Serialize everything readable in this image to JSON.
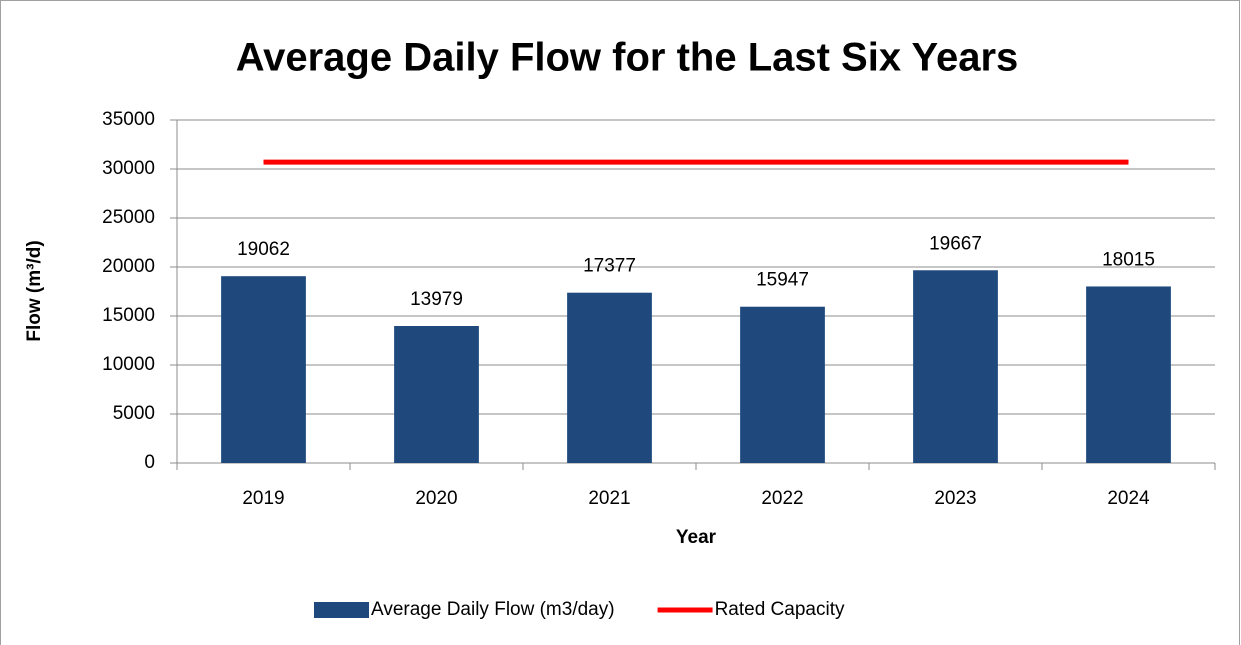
{
  "chart_data": {
    "type": "bar",
    "title": "Average Daily Flow for the Last Six Years",
    "x_label": "Year",
    "y_label": "Flow (m³/d)",
    "categories": [
      "2019",
      "2020",
      "2021",
      "2022",
      "2023",
      "2024"
    ],
    "series": [
      {
        "name": "Average Daily Flow (m3/day)",
        "type": "bar",
        "color": "#1f497d",
        "values": [
          19062,
          13979,
          17377,
          15947,
          19667,
          18015
        ]
      },
      {
        "name": "Rated Capacity",
        "type": "line",
        "color": "#ff0000",
        "values": [
          30700,
          30700,
          30700,
          30700,
          30700,
          30700
        ]
      }
    ],
    "ylim": [
      0,
      35000
    ],
    "yticks": [
      0,
      5000,
      10000,
      15000,
      20000,
      25000,
      30000,
      35000
    ],
    "grid": true,
    "legend": "bottom"
  }
}
